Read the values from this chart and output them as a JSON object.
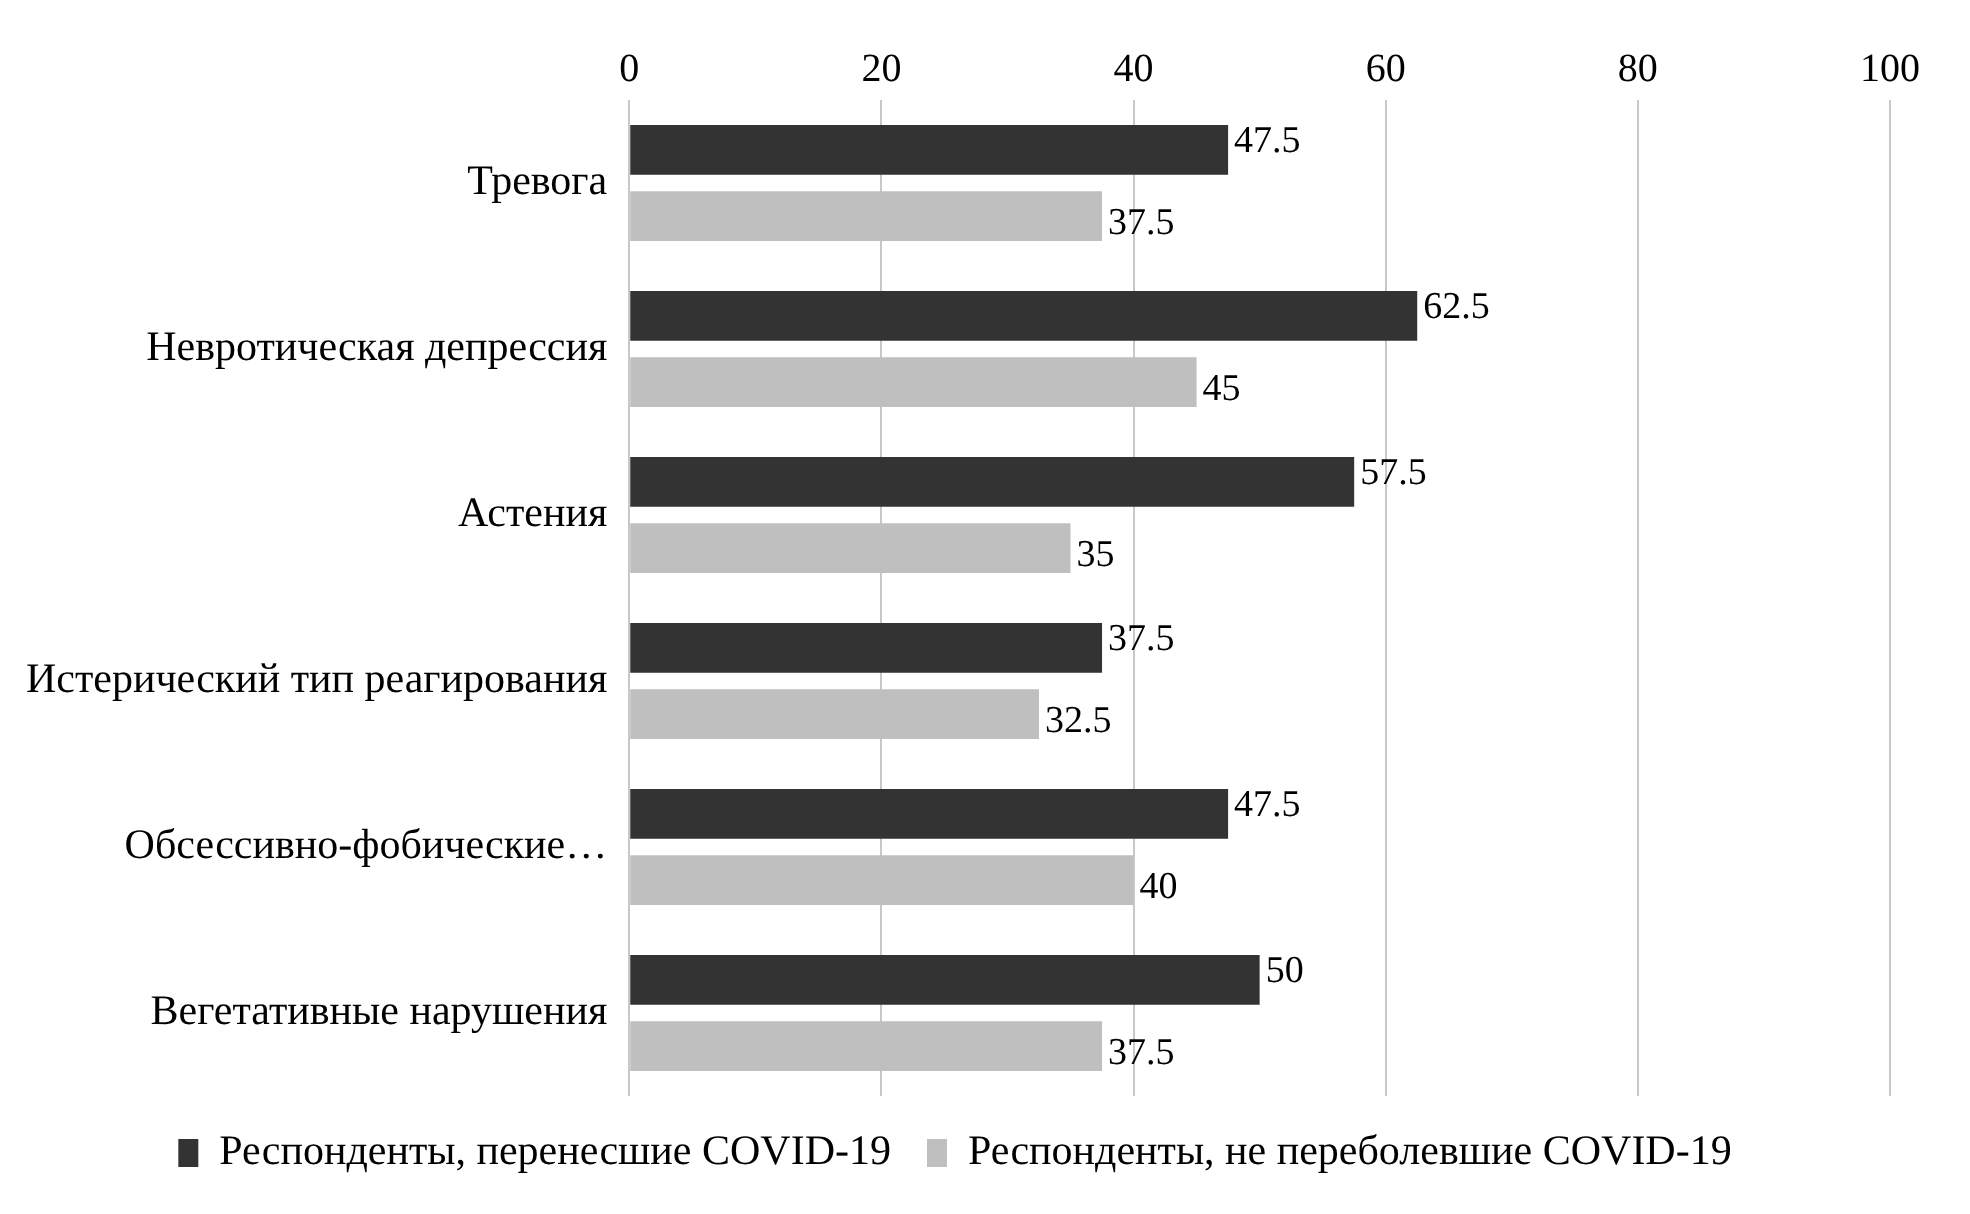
{
  "chart_data": {
    "type": "bar",
    "orientation": "horizontal",
    "categories": [
      "Тревога",
      "Невротическая депрессия",
      "Астения",
      "Истерический тип реагирования",
      "Обсессивно-фобические…",
      "Вегетативные нарушения"
    ],
    "series": [
      {
        "name": "Респонденты, перенесшие COVID-19",
        "color": "#333333",
        "values": [
          47.5,
          62.5,
          57.5,
          37.5,
          47.5,
          50
        ]
      },
      {
        "name": "Респонденты, не переболевшие COVID-19",
        "color": "#bfbfbf",
        "values": [
          37.5,
          45,
          35,
          32.5,
          40,
          37.5
        ]
      }
    ],
    "xlim": [
      0,
      100
    ],
    "xticks": [
      0,
      20,
      40,
      60,
      80,
      100
    ],
    "grid": "x",
    "legend": "bottom",
    "data_labels": true
  }
}
